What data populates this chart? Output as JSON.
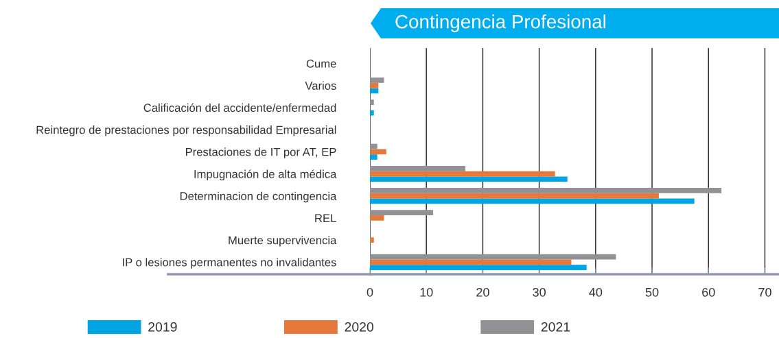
{
  "chart_data": {
    "type": "bar",
    "orientation": "horizontal",
    "title": "Contingencia Profesional",
    "categories": [
      "Cume",
      "Varios",
      "Calificación del accidente/enfermedad",
      "Reintegro de prestaciones por responsabilidad Empresarial",
      "Prestaciones de IT por AT, EP",
      "Impugnación de alta médica",
      "Determinacion de contingencia",
      "REL",
      "Muerte supervivencia",
      "IP o lesiones permanentes no invalidantes"
    ],
    "series": [
      {
        "name": "2019",
        "color": "#00a6e3",
        "values": [
          null,
          1.5,
          0.7,
          null,
          1.3,
          35,
          57.5,
          null,
          null,
          38.4
        ]
      },
      {
        "name": "2020",
        "color": "#e5783a",
        "values": [
          null,
          1.5,
          null,
          null,
          2.9,
          32.8,
          51.2,
          2.5,
          0.7,
          35.7
        ]
      },
      {
        "name": "2021",
        "color": "#929296",
        "values": [
          null,
          2.5,
          0.7,
          null,
          1.3,
          16.9,
          62.3,
          11.2,
          null,
          43.6
        ]
      }
    ],
    "xlim": [
      0,
      72.5
    ],
    "xticks": [
      0,
      10,
      20,
      30,
      40,
      50,
      60,
      70
    ],
    "grid": "x",
    "legend": "bottom"
  }
}
